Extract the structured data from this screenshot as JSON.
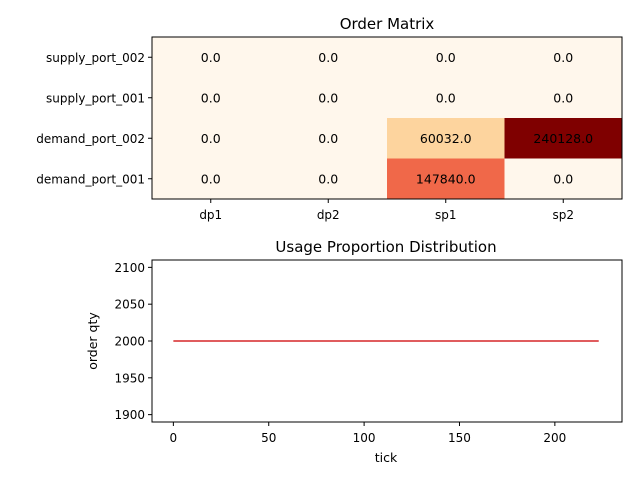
{
  "chart_data": [
    {
      "type": "heatmap",
      "title": "Order Matrix",
      "rows": [
        "supply_port_002",
        "supply_port_001",
        "demand_port_002",
        "demand_port_001"
      ],
      "columns": [
        "dp1",
        "dp2",
        "sp1",
        "sp2"
      ],
      "values": [
        [
          0.0,
          0.0,
          0.0,
          0.0
        ],
        [
          0.0,
          0.0,
          0.0,
          0.0
        ],
        [
          0.0,
          0.0,
          60032.0,
          240128.0
        ],
        [
          0.0,
          0.0,
          147840.0,
          0.0
        ]
      ],
      "cell_labels": [
        [
          "0.0",
          "0.0",
          "0.0",
          "0.0"
        ],
        [
          "0.0",
          "0.0",
          "0.0",
          "0.0"
        ],
        [
          "0.0",
          "0.0",
          "60032.0",
          "240128.0"
        ],
        [
          "0.0",
          "0.0",
          "147840.0",
          "0.0"
        ]
      ],
      "colormap": "OrRd",
      "colors": {
        "low": "#fff5eb",
        "mid_low": "#fdd49e",
        "mid_high": "#ef6548",
        "high": "#7f0000"
      }
    },
    {
      "type": "line",
      "title": "Usage Proportion Distribution",
      "xlabel": "tick",
      "ylabel": "order qty",
      "xlim": [
        -11.2,
        235.2
      ],
      "ylim": [
        1890,
        2110
      ],
      "xticks": [
        0,
        50,
        100,
        150,
        200
      ],
      "yticks": [
        1900,
        1950,
        2000,
        2050,
        2100
      ],
      "series": [
        {
          "x": [
            0,
            223
          ],
          "y": [
            2000,
            2000
          ],
          "color": "#d62728"
        }
      ],
      "grid": false
    }
  ]
}
